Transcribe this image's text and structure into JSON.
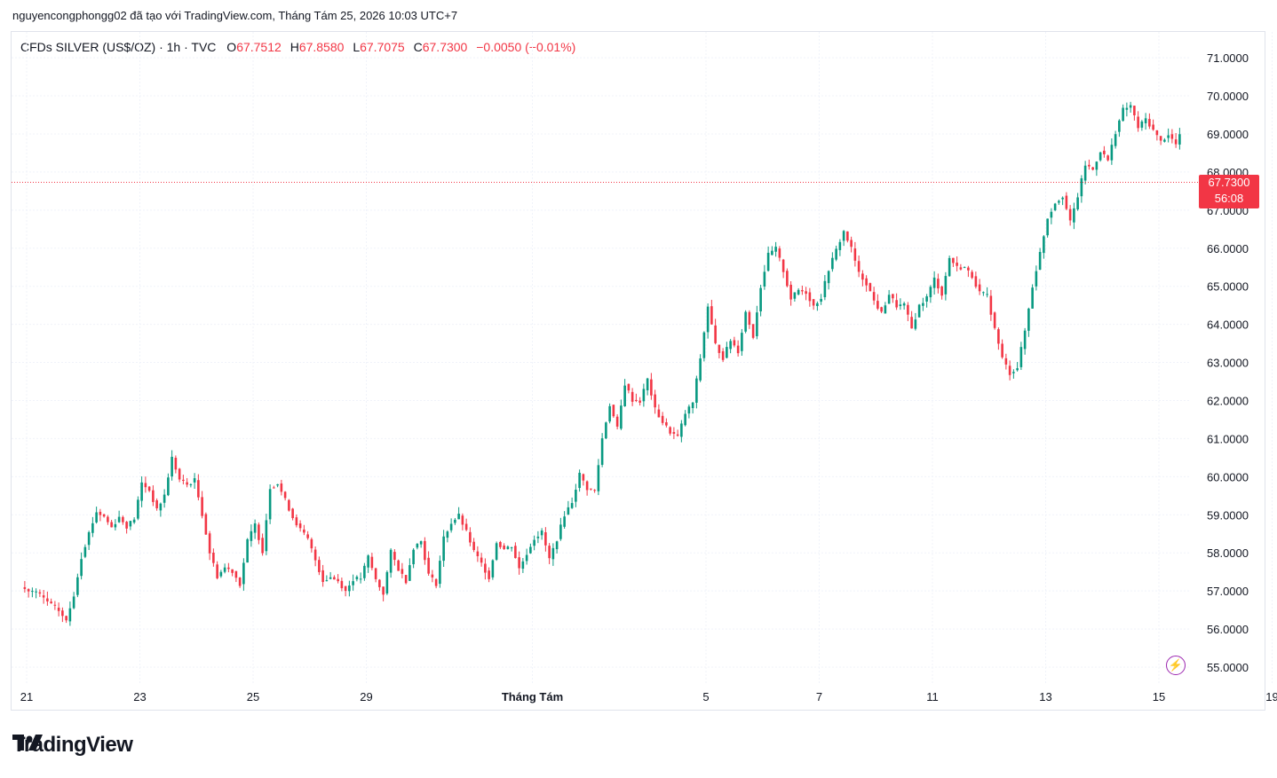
{
  "header": {
    "attribution": "nguyencongphongg02 đã tạo với TradingView.com, Tháng Tám 25, 2026 10:03 UTC+7"
  },
  "legend": {
    "symbol": "CFDs SILVER (US$/OZ) · 1h · TVC",
    "open_label": "O",
    "open": "67.7512",
    "high_label": "H",
    "high": "67.8580",
    "low_label": "L",
    "low": "67.7075",
    "close_label": "C",
    "close": "67.7300",
    "change": "−0.0050 (−0.01%)"
  },
  "price_tag": {
    "price": "67.7300",
    "countdown": "56:08"
  },
  "logo": {
    "text": "TradingView"
  },
  "colors": {
    "up": "#089981",
    "down": "#f23645",
    "grid": "#f0f3fa",
    "text": "#131722"
  },
  "chart_data": {
    "type": "candlestick",
    "timeframe": "1h",
    "y_ticks": [
      "55.0000",
      "56.0000",
      "57.0000",
      "58.0000",
      "59.0000",
      "60.0000",
      "61.0000",
      "62.0000",
      "63.0000",
      "64.0000",
      "65.0000",
      "66.0000",
      "67.0000",
      "68.0000",
      "69.0000",
      "70.0000",
      "71.0000"
    ],
    "ylim": [
      54.7,
      71.4
    ],
    "x_ticks": [
      {
        "label": "21",
        "idx": 0,
        "bold": false
      },
      {
        "label": "23",
        "idx": 15,
        "bold": false
      },
      {
        "label": "25",
        "idx": 30,
        "bold": false
      },
      {
        "label": "29",
        "idx": 45,
        "bold": false
      },
      {
        "label": "Tháng Tám",
        "idx": 67,
        "bold": true
      },
      {
        "label": "5",
        "idx": 90,
        "bold": false
      },
      {
        "label": "7",
        "idx": 105,
        "bold": false
      },
      {
        "label": "11",
        "idx": 120,
        "bold": false
      },
      {
        "label": "13",
        "idx": 135,
        "bold": false
      },
      {
        "label": "15",
        "idx": 150,
        "bold": false
      },
      {
        "label": "19",
        "idx": 165,
        "bold": false
      },
      {
        "label": "21",
        "idx": 180,
        "bold": false
      },
      {
        "label": "25",
        "idx": 195,
        "bold": false
      }
    ],
    "last_price": 67.73,
    "close_path": [
      [
        0,
        57.0
      ],
      [
        2,
        56.9
      ],
      [
        4,
        56.5
      ],
      [
        5,
        56.2
      ],
      [
        6,
        57.0
      ],
      [
        7,
        57.8
      ],
      [
        8,
        58.5
      ],
      [
        9,
        59.1
      ],
      [
        10,
        59.0
      ],
      [
        11,
        58.6
      ],
      [
        12,
        58.9
      ],
      [
        13,
        58.8
      ],
      [
        14,
        58.9
      ],
      [
        15,
        59.9
      ],
      [
        16,
        59.6
      ],
      [
        17,
        59.2
      ],
      [
        18,
        59.5
      ],
      [
        19,
        60.5
      ],
      [
        20,
        60.0
      ],
      [
        21,
        59.9
      ],
      [
        22,
        59.8
      ],
      [
        23,
        58.9
      ],
      [
        24,
        58.1
      ],
      [
        25,
        57.4
      ],
      [
        26,
        57.5
      ],
      [
        27,
        57.6
      ],
      [
        28,
        57.2
      ],
      [
        29,
        58.3
      ],
      [
        30,
        58.7
      ],
      [
        31,
        58.1
      ],
      [
        32,
        59.8
      ],
      [
        33,
        59.7
      ],
      [
        34,
        59.4
      ],
      [
        35,
        59.0
      ],
      [
        36,
        58.6
      ],
      [
        37,
        58.4
      ],
      [
        38,
        57.9
      ],
      [
        39,
        57.2
      ],
      [
        40,
        57.4
      ],
      [
        41,
        57.3
      ],
      [
        42,
        57.1
      ],
      [
        43,
        57.2
      ],
      [
        44,
        57.4
      ],
      [
        45,
        57.8
      ],
      [
        46,
        57.3
      ],
      [
        47,
        57.0
      ],
      [
        48,
        58.0
      ],
      [
        49,
        57.6
      ],
      [
        50,
        57.2
      ],
      [
        51,
        58.1
      ],
      [
        52,
        58.4
      ],
      [
        53,
        57.5
      ],
      [
        54,
        57.2
      ],
      [
        55,
        58.5
      ],
      [
        56,
        58.9
      ],
      [
        57,
        59.0
      ],
      [
        58,
        58.5
      ],
      [
        59,
        58.0
      ],
      [
        60,
        57.6
      ],
      [
        61,
        57.4
      ],
      [
        62,
        58.3
      ],
      [
        63,
        58.1
      ],
      [
        64,
        58.2
      ],
      [
        65,
        57.5
      ],
      [
        66,
        58.0
      ],
      [
        67,
        58.4
      ],
      [
        68,
        58.6
      ],
      [
        69,
        57.9
      ],
      [
        70,
        58.3
      ],
      [
        71,
        59.1
      ],
      [
        72,
        59.4
      ],
      [
        73,
        60.0
      ],
      [
        74,
        59.6
      ],
      [
        75,
        59.5
      ],
      [
        76,
        60.9
      ],
      [
        77,
        61.8
      ],
      [
        78,
        61.2
      ],
      [
        79,
        62.4
      ],
      [
        80,
        62.0
      ],
      [
        81,
        62.1
      ],
      [
        82,
        62.6
      ],
      [
        83,
        61.8
      ],
      [
        84,
        61.5
      ],
      [
        85,
        61.2
      ],
      [
        86,
        61.0
      ],
      [
        87,
        61.6
      ],
      [
        88,
        62.0
      ],
      [
        89,
        63.0
      ],
      [
        90,
        64.6
      ],
      [
        91,
        63.5
      ],
      [
        92,
        63.1
      ],
      [
        93,
        63.6
      ],
      [
        94,
        63.4
      ],
      [
        95,
        64.2
      ],
      [
        96,
        63.7
      ],
      [
        97,
        64.9
      ],
      [
        98,
        65.8
      ],
      [
        99,
        66.0
      ],
      [
        100,
        65.5
      ],
      [
        101,
        64.6
      ],
      [
        102,
        64.8
      ],
      [
        103,
        64.9
      ],
      [
        104,
        64.6
      ],
      [
        105,
        64.8
      ],
      [
        106,
        65.4
      ],
      [
        107,
        65.9
      ],
      [
        108,
        66.4
      ],
      [
        109,
        65.9
      ],
      [
        110,
        65.4
      ],
      [
        111,
        65.0
      ],
      [
        112,
        64.7
      ],
      [
        113,
        64.4
      ],
      [
        114,
        64.9
      ],
      [
        115,
        64.6
      ],
      [
        116,
        64.5
      ],
      [
        117,
        63.8
      ],
      [
        118,
        64.4
      ],
      [
        119,
        64.8
      ],
      [
        120,
        65.2
      ],
      [
        121,
        64.9
      ],
      [
        122,
        65.8
      ],
      [
        123,
        65.5
      ],
      [
        124,
        65.6
      ],
      [
        125,
        65.3
      ],
      [
        126,
        64.9
      ],
      [
        127,
        64.8
      ],
      [
        128,
        63.8
      ],
      [
        129,
        63.2
      ],
      [
        130,
        62.8
      ],
      [
        131,
        63.0
      ],
      [
        132,
        63.8
      ],
      [
        133,
        65.1
      ],
      [
        134,
        65.9
      ],
      [
        135,
        66.9
      ],
      [
        136,
        67.2
      ],
      [
        137,
        67.4
      ],
      [
        138,
        66.8
      ],
      [
        139,
        67.3
      ],
      [
        140,
        68.2
      ],
      [
        141,
        68.0
      ],
      [
        142,
        68.6
      ],
      [
        143,
        68.2
      ],
      [
        144,
        69.0
      ],
      [
        145,
        69.6
      ],
      [
        146,
        69.8
      ],
      [
        147,
        69.2
      ],
      [
        148,
        69.5
      ],
      [
        149,
        69.0
      ],
      [
        150,
        68.9
      ],
      [
        151,
        69.1
      ],
      [
        152,
        68.8
      ],
      [
        153,
        69.3
      ],
      [
        154,
        68.6
      ],
      [
        155,
        69.0
      ],
      [
        156,
        69.4
      ],
      [
        157,
        67.7
      ]
    ]
  }
}
